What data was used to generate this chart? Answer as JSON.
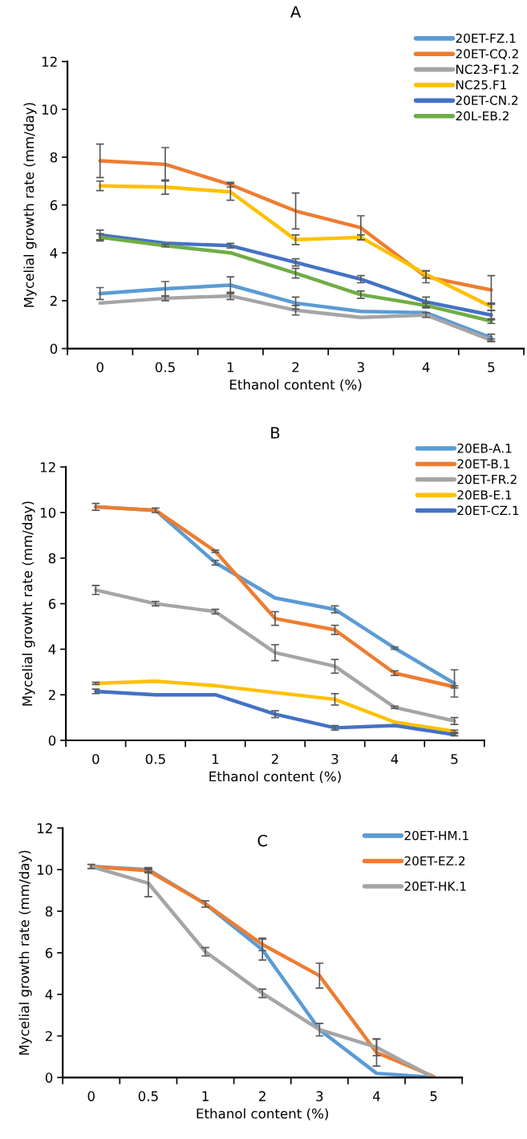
{
  "chart_data": [
    {
      "type": "line",
      "title": "A",
      "xlabel": "Ethanol content (%)",
      "ylabel": "Mycelial growth rate (mm/day)",
      "categories": [
        "0",
        "0.5",
        "1",
        "2",
        "3",
        "4",
        "5"
      ],
      "ylim": [
        0,
        12
      ],
      "yticks": [
        0,
        2,
        4,
        6,
        8,
        10,
        12
      ],
      "legend": "top right",
      "grid": false,
      "series": [
        {
          "name": "20ET-FZ.1",
          "color": "#5b9bd5",
          "values": [
            2.3,
            2.5,
            2.65,
            1.9,
            1.55,
            1.5,
            0.45
          ],
          "errors": [
            0.25,
            0.3,
            0.35,
            0.25,
            null,
            null,
            0.15
          ]
        },
        {
          "name": "20ET-CQ.2",
          "color": "#ed7d31",
          "values": [
            7.85,
            7.7,
            6.85,
            5.75,
            5.05,
            3.0,
            2.45
          ],
          "errors": [
            0.7,
            0.7,
            0.1,
            0.75,
            0.5,
            0.25,
            0.6
          ]
        },
        {
          "name": "NC23-F1.2",
          "color": "#a5a5a5",
          "values": [
            1.9,
            2.1,
            2.2,
            1.6,
            1.3,
            1.4,
            0.35
          ],
          "errors": [
            null,
            0.1,
            0.15,
            0.2,
            null,
            0.1,
            0.05
          ]
        },
        {
          "name": "NC25.F1",
          "color": "#ffc000",
          "values": [
            6.8,
            6.75,
            6.55,
            4.55,
            4.65,
            3.1,
            1.75
          ],
          "errors": [
            0.2,
            0.3,
            0.35,
            0.2,
            0.1,
            0.15,
            0.15
          ]
        },
        {
          "name": "20ET-CN.2",
          "color": "#4472c4",
          "values": [
            4.75,
            4.4,
            4.3,
            3.6,
            2.9,
            1.95,
            1.4
          ],
          "errors": [
            0.2,
            null,
            0.1,
            0.15,
            0.15,
            0.2,
            0.2
          ]
        },
        {
          "name": "20L-EB.2",
          "color": "#70ad47",
          "values": [
            4.65,
            4.3,
            4.0,
            3.15,
            2.25,
            1.8,
            1.15
          ],
          "errors": [
            0.15,
            0.05,
            null,
            0.2,
            0.15,
            0.1,
            0.1
          ]
        }
      ]
    },
    {
      "type": "line",
      "title": "B",
      "xlabel": "Ethanol content (%)",
      "ylabel": "Mycelial growht rate (mm/day)",
      "categories": [
        "0",
        "0.5",
        "1",
        "2",
        "3",
        "4",
        "5"
      ],
      "ylim": [
        0,
        12
      ],
      "yticks": [
        0,
        2,
        4,
        6,
        8,
        10,
        12
      ],
      "legend": "top right",
      "grid": false,
      "series": [
        {
          "name": "20EB-A.1",
          "color": "#5b9bd5",
          "values": [
            10.25,
            10.1,
            7.8,
            6.25,
            5.75,
            4.05,
            2.5
          ],
          "errors": [
            0.15,
            0.1,
            0.1,
            null,
            0.15,
            0.05,
            0.6
          ]
        },
        {
          "name": "20ET-B.1",
          "color": "#ed7d31",
          "values": [
            10.25,
            10.1,
            8.3,
            5.35,
            4.85,
            2.95,
            2.35
          ],
          "errors": [
            null,
            null,
            0.05,
            0.3,
            0.2,
            0.1,
            0.05
          ]
        },
        {
          "name": "20ET-FR.2",
          "color": "#a5a5a5",
          "values": [
            6.6,
            6.0,
            5.65,
            3.85,
            3.25,
            1.45,
            0.85
          ],
          "errors": [
            0.2,
            0.1,
            0.1,
            0.35,
            0.3,
            0.05,
            0.15
          ]
        },
        {
          "name": "20EB-E.1",
          "color": "#ffc000",
          "values": [
            2.5,
            2.6,
            2.4,
            2.1,
            1.8,
            0.8,
            0.4
          ],
          "errors": [
            0.05,
            null,
            null,
            null,
            0.25,
            null,
            0.05
          ]
        },
        {
          "name": "20ET-CZ.1",
          "color": "#4472c4",
          "values": [
            2.15,
            2.0,
            2.0,
            1.15,
            0.55,
            0.65,
            0.25
          ],
          "errors": [
            0.1,
            null,
            null,
            0.15,
            0.1,
            null,
            0.05
          ]
        }
      ]
    },
    {
      "type": "line",
      "title": "C",
      "xlabel": "Ethanol content (%)",
      "ylabel": "Mycelial growth rate (mm/day)",
      "categories": [
        "0",
        "0.5",
        "1",
        "2",
        "3",
        "4",
        "5"
      ],
      "ylim": [
        0,
        12
      ],
      "yticks": [
        0,
        2,
        4,
        6,
        8,
        10,
        12
      ],
      "legend": "top right",
      "grid": false,
      "series": [
        {
          "name": "20ET-HM.1",
          "color": "#5b9bd5",
          "values": [
            10.15,
            10.0,
            8.35,
            6.15,
            2.3,
            0.2,
            0.0
          ],
          "errors": [
            0.1,
            0.1,
            0.15,
            0.5,
            null,
            null,
            null
          ]
        },
        {
          "name": "20ET-EZ.2",
          "color": "#ed7d31",
          "values": [
            10.15,
            9.95,
            8.35,
            6.4,
            4.9,
            1.2,
            0.05
          ],
          "errors": [
            null,
            0.1,
            null,
            0.3,
            0.6,
            0.65,
            null
          ]
        },
        {
          "name": "20ET-HK.1",
          "color": "#a5a5a5",
          "values": [
            10.15,
            9.35,
            6.05,
            4.05,
            2.3,
            1.45,
            0.0
          ],
          "errors": [
            null,
            0.65,
            0.2,
            0.2,
            0.3,
            0.4,
            null
          ]
        }
      ]
    }
  ]
}
